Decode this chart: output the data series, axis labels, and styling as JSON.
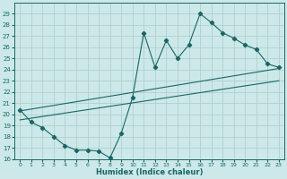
{
  "xlabel": "Humidex (Indice chaleur)",
  "bg_color": "#cce8e8",
  "line_color": "#1a6666",
  "grid_color": "#aacccc",
  "xlim": [
    -0.5,
    23.5
  ],
  "ylim": [
    16,
    30
  ],
  "xticks": [
    0,
    1,
    2,
    3,
    4,
    5,
    6,
    7,
    8,
    9,
    10,
    11,
    12,
    13,
    14,
    15,
    16,
    17,
    18,
    19,
    20,
    21,
    22,
    23
  ],
  "yticks": [
    16,
    17,
    18,
    19,
    20,
    21,
    22,
    23,
    24,
    25,
    26,
    27,
    28,
    29
  ],
  "line1_x": [
    0,
    1,
    2,
    3,
    4,
    5,
    6,
    7,
    8,
    9,
    10,
    11,
    12,
    13,
    14,
    15,
    16,
    17,
    18,
    19,
    20,
    21,
    22,
    23
  ],
  "line1_y": [
    20.4,
    19.3,
    18.8,
    18.0,
    17.2,
    16.8,
    16.8,
    16.7,
    16.1,
    18.3,
    21.5,
    27.3,
    24.2,
    26.6,
    25.0,
    26.2,
    29.0,
    28.2,
    27.3,
    26.8,
    26.2,
    25.8,
    24.5,
    24.2
  ],
  "line3_x": [
    0,
    23
  ],
  "line3_y": [
    19.5,
    23.0
  ],
  "line4_x": [
    0,
    23
  ],
  "line4_y": [
    20.3,
    24.1
  ]
}
